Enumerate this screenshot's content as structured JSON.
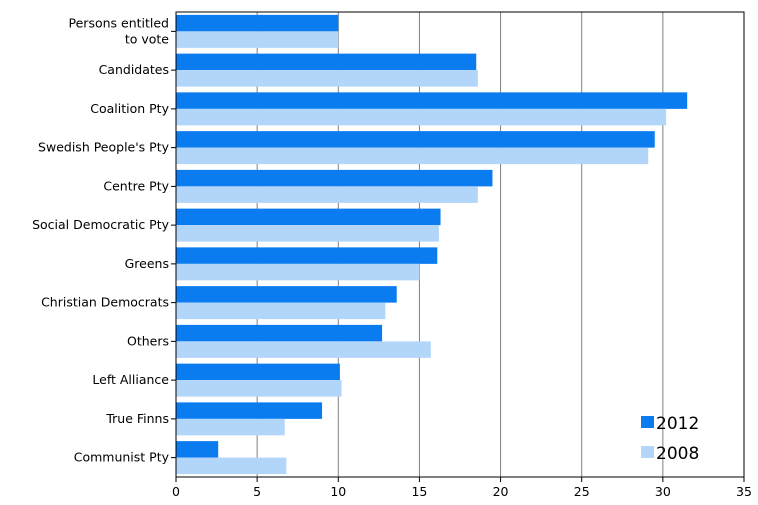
{
  "chart_data": {
    "type": "bar",
    "orientation": "horizontal",
    "categories": [
      [
        "Persons entitled",
        "to vote"
      ],
      [
        "Candidates"
      ],
      [
        "Coalition Pty"
      ],
      [
        "Swedish People's Pty"
      ],
      [
        "Centre Pty"
      ],
      [
        "Social Democratic Pty"
      ],
      [
        "Greens"
      ],
      [
        "Christian Democrats"
      ],
      [
        "Others"
      ],
      [
        "Left Alliance"
      ],
      [
        "True Finns"
      ],
      [
        "Communist Pty"
      ]
    ],
    "series": [
      {
        "name": "2012",
        "color": "#0a7cf0",
        "values": [
          10.0,
          18.5,
          31.5,
          29.5,
          19.5,
          16.3,
          16.1,
          13.6,
          12.7,
          10.1,
          9.0,
          2.6
        ]
      },
      {
        "name": "2008",
        "color": "#b2d6fa",
        "values": [
          10.0,
          18.6,
          30.2,
          29.1,
          18.6,
          16.2,
          15.0,
          12.9,
          15.7,
          10.2,
          6.7,
          6.8
        ]
      }
    ],
    "xlim": [
      0,
      35
    ],
    "xticks": [
      0,
      5,
      10,
      15,
      20,
      25,
      30,
      35
    ],
    "grid": true,
    "legend_position": "bottom-right",
    "title": "",
    "xlabel": "",
    "ylabel": ""
  }
}
